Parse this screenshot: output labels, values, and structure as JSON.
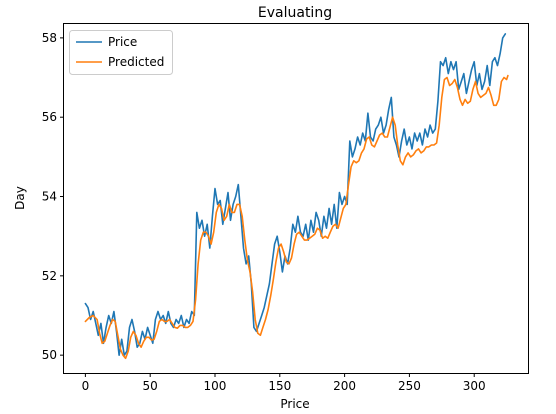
{
  "chart_data": {
    "type": "line",
    "title": "Evaluating",
    "xlabel": "Price",
    "ylabel": "Day",
    "xlim": [
      -16.5,
      341.5
    ],
    "ylim": [
      49.55,
      58.35
    ],
    "xticks": [
      0,
      50,
      100,
      150,
      200,
      250,
      300
    ],
    "yticks": [
      50,
      52,
      54,
      56,
      58
    ],
    "grid": false,
    "legend_position": "top-left",
    "colors": {
      "Price": "#1f77b4",
      "Predicted": "#ff7f0e"
    },
    "series": [
      {
        "name": "Price",
        "color": "#1f77b4",
        "points": [
          [
            0,
            51.3
          ],
          [
            2,
            51.2
          ],
          [
            4,
            50.9
          ],
          [
            6,
            51.1
          ],
          [
            8,
            50.8
          ],
          [
            10,
            50.5
          ],
          [
            12,
            50.8
          ],
          [
            14,
            50.3
          ],
          [
            16,
            50.7
          ],
          [
            18,
            51.0
          ],
          [
            20,
            50.8
          ],
          [
            22,
            51.1
          ],
          [
            24,
            50.6
          ],
          [
            26,
            50.0
          ],
          [
            28,
            50.4
          ],
          [
            30,
            50.0
          ],
          [
            32,
            50.1
          ],
          [
            34,
            50.7
          ],
          [
            36,
            50.9
          ],
          [
            38,
            50.6
          ],
          [
            40,
            50.2
          ],
          [
            42,
            50.3
          ],
          [
            44,
            50.6
          ],
          [
            46,
            50.4
          ],
          [
            48,
            50.7
          ],
          [
            50,
            50.5
          ],
          [
            52,
            50.3
          ],
          [
            54,
            50.9
          ],
          [
            56,
            51.1
          ],
          [
            58,
            50.9
          ],
          [
            60,
            51.0
          ],
          [
            62,
            50.8
          ],
          [
            64,
            51.1
          ],
          [
            66,
            50.8
          ],
          [
            68,
            50.7
          ],
          [
            70,
            50.9
          ],
          [
            72,
            50.8
          ],
          [
            74,
            51.0
          ],
          [
            76,
            50.7
          ],
          [
            78,
            50.9
          ],
          [
            80,
            50.8
          ],
          [
            82,
            51.1
          ],
          [
            84,
            51.0
          ],
          [
            86,
            53.6
          ],
          [
            88,
            53.2
          ],
          [
            90,
            53.4
          ],
          [
            92,
            53.0
          ],
          [
            94,
            53.3
          ],
          [
            96,
            52.7
          ],
          [
            98,
            53.5
          ],
          [
            100,
            54.2
          ],
          [
            102,
            53.8
          ],
          [
            104,
            53.9
          ],
          [
            106,
            53.3
          ],
          [
            108,
            53.7
          ],
          [
            110,
            54.1
          ],
          [
            112,
            53.4
          ],
          [
            114,
            53.8
          ],
          [
            116,
            54.0
          ],
          [
            118,
            54.3
          ],
          [
            120,
            53.5
          ],
          [
            122,
            52.7
          ],
          [
            124,
            52.3
          ],
          [
            126,
            52.5
          ],
          [
            128,
            51.8
          ],
          [
            130,
            50.7
          ],
          [
            132,
            50.6
          ],
          [
            134,
            50.8
          ],
          [
            136,
            51.0
          ],
          [
            138,
            51.2
          ],
          [
            140,
            51.5
          ],
          [
            142,
            51.8
          ],
          [
            144,
            52.3
          ],
          [
            146,
            52.8
          ],
          [
            148,
            53.0
          ],
          [
            150,
            52.6
          ],
          [
            152,
            52.1
          ],
          [
            154,
            52.5
          ],
          [
            156,
            52.3
          ],
          [
            158,
            52.7
          ],
          [
            160,
            53.3
          ],
          [
            162,
            53.1
          ],
          [
            164,
            53.5
          ],
          [
            166,
            53.1
          ],
          [
            168,
            53.0
          ],
          [
            170,
            53.3
          ],
          [
            172,
            52.9
          ],
          [
            174,
            53.4
          ],
          [
            176,
            53.1
          ],
          [
            178,
            53.6
          ],
          [
            180,
            53.4
          ],
          [
            182,
            53.0
          ],
          [
            184,
            53.5
          ],
          [
            186,
            53.2
          ],
          [
            188,
            53.7
          ],
          [
            190,
            53.3
          ],
          [
            192,
            53.8
          ],
          [
            194,
            53.2
          ],
          [
            196,
            54.1
          ],
          [
            198,
            53.8
          ],
          [
            200,
            54.0
          ],
          [
            202,
            53.8
          ],
          [
            204,
            55.4
          ],
          [
            206,
            55.0
          ],
          [
            208,
            55.2
          ],
          [
            210,
            55.5
          ],
          [
            212,
            55.3
          ],
          [
            214,
            55.6
          ],
          [
            216,
            55.4
          ],
          [
            218,
            56.1
          ],
          [
            220,
            55.5
          ],
          [
            222,
            55.4
          ],
          [
            224,
            55.7
          ],
          [
            226,
            55.8
          ],
          [
            228,
            56.0
          ],
          [
            230,
            55.6
          ],
          [
            232,
            55.8
          ],
          [
            234,
            56.2
          ],
          [
            236,
            56.5
          ],
          [
            238,
            55.5
          ],
          [
            240,
            55.3
          ],
          [
            242,
            55.0
          ],
          [
            244,
            55.4
          ],
          [
            246,
            55.7
          ],
          [
            248,
            55.3
          ],
          [
            250,
            55.5
          ],
          [
            252,
            55.2
          ],
          [
            254,
            55.6
          ],
          [
            256,
            55.4
          ],
          [
            258,
            55.6
          ],
          [
            260,
            55.3
          ],
          [
            262,
            55.7
          ],
          [
            264,
            55.5
          ],
          [
            266,
            55.8
          ],
          [
            268,
            55.6
          ],
          [
            270,
            55.7
          ],
          [
            272,
            56.4
          ],
          [
            274,
            57.4
          ],
          [
            276,
            57.3
          ],
          [
            278,
            57.5
          ],
          [
            280,
            57.1
          ],
          [
            282,
            57.4
          ],
          [
            284,
            57.2
          ],
          [
            286,
            57.4
          ],
          [
            288,
            56.7
          ],
          [
            290,
            56.9
          ],
          [
            292,
            57.1
          ],
          [
            294,
            56.6
          ],
          [
            296,
            56.9
          ],
          [
            298,
            57.2
          ],
          [
            300,
            57.4
          ],
          [
            302,
            56.8
          ],
          [
            304,
            57.1
          ],
          [
            306,
            56.7
          ],
          [
            308,
            56.9
          ],
          [
            310,
            57.3
          ],
          [
            312,
            56.8
          ],
          [
            314,
            57.4
          ],
          [
            316,
            57.5
          ],
          [
            318,
            57.3
          ],
          [
            320,
            57.6
          ],
          [
            322,
            58.0
          ],
          [
            324,
            58.1
          ]
        ]
      },
      {
        "name": "Predicted",
        "color": "#ff7f0e",
        "points": [
          [
            0,
            50.85
          ],
          [
            3,
            50.95
          ],
          [
            6,
            51.0
          ],
          [
            9,
            50.9
          ],
          [
            11,
            50.55
          ],
          [
            13,
            50.3
          ],
          [
            15,
            50.35
          ],
          [
            17,
            50.55
          ],
          [
            19,
            50.75
          ],
          [
            21,
            50.9
          ],
          [
            23,
            50.85
          ],
          [
            25,
            50.5
          ],
          [
            27,
            50.15
          ],
          [
            29,
            50.0
          ],
          [
            31,
            49.92
          ],
          [
            33,
            50.1
          ],
          [
            35,
            50.45
          ],
          [
            37,
            50.6
          ],
          [
            39,
            50.5
          ],
          [
            41,
            50.3
          ],
          [
            43,
            50.2
          ],
          [
            45,
            50.35
          ],
          [
            47,
            50.45
          ],
          [
            49,
            50.45
          ],
          [
            51,
            50.38
          ],
          [
            53,
            50.4
          ],
          [
            55,
            50.6
          ],
          [
            57,
            50.85
          ],
          [
            59,
            50.9
          ],
          [
            61,
            50.85
          ],
          [
            63,
            50.85
          ],
          [
            65,
            50.9
          ],
          [
            67,
            50.8
          ],
          [
            69,
            50.7
          ],
          [
            71,
            50.68
          ],
          [
            73,
            50.75
          ],
          [
            75,
            50.75
          ],
          [
            77,
            50.7
          ],
          [
            79,
            50.7
          ],
          [
            81,
            50.75
          ],
          [
            83,
            50.85
          ],
          [
            85,
            51.4
          ],
          [
            87,
            52.3
          ],
          [
            89,
            52.9
          ],
          [
            91,
            53.1
          ],
          [
            93,
            53.1
          ],
          [
            95,
            53.0
          ],
          [
            97,
            52.8
          ],
          [
            99,
            53.1
          ],
          [
            101,
            53.6
          ],
          [
            103,
            53.8
          ],
          [
            105,
            53.7
          ],
          [
            107,
            53.4
          ],
          [
            109,
            53.5
          ],
          [
            111,
            53.8
          ],
          [
            113,
            53.6
          ],
          [
            115,
            53.6
          ],
          [
            117,
            53.8
          ],
          [
            119,
            53.8
          ],
          [
            121,
            53.5
          ],
          [
            123,
            52.9
          ],
          [
            125,
            52.4
          ],
          [
            127,
            52.1
          ],
          [
            129,
            51.6
          ],
          [
            131,
            50.9
          ],
          [
            133,
            50.55
          ],
          [
            135,
            50.5
          ],
          [
            137,
            50.7
          ],
          [
            139,
            50.9
          ],
          [
            141,
            51.15
          ],
          [
            143,
            51.5
          ],
          [
            145,
            51.9
          ],
          [
            147,
            52.35
          ],
          [
            149,
            52.7
          ],
          [
            151,
            52.8
          ],
          [
            153,
            52.6
          ],
          [
            155,
            52.35
          ],
          [
            157,
            52.3
          ],
          [
            159,
            52.45
          ],
          [
            161,
            52.8
          ],
          [
            163,
            53.05
          ],
          [
            165,
            53.1
          ],
          [
            167,
            53.0
          ],
          [
            169,
            52.9
          ],
          [
            171,
            52.9
          ],
          [
            173,
            52.95
          ],
          [
            175,
            53.0
          ],
          [
            177,
            53.05
          ],
          [
            179,
            53.2
          ],
          [
            181,
            53.15
          ],
          [
            183,
            52.95
          ],
          [
            185,
            53.0
          ],
          [
            187,
            52.95
          ],
          [
            189,
            53.1
          ],
          [
            191,
            53.25
          ],
          [
            193,
            53.3
          ],
          [
            195,
            53.2
          ],
          [
            197,
            53.45
          ],
          [
            199,
            53.7
          ],
          [
            201,
            53.8
          ],
          [
            203,
            54.3
          ],
          [
            205,
            54.75
          ],
          [
            207,
            54.9
          ],
          [
            209,
            54.85
          ],
          [
            211,
            54.9
          ],
          [
            213,
            55.1
          ],
          [
            215,
            55.2
          ],
          [
            217,
            55.45
          ],
          [
            219,
            55.5
          ],
          [
            221,
            55.3
          ],
          [
            223,
            55.25
          ],
          [
            225,
            55.4
          ],
          [
            227,
            55.55
          ],
          [
            229,
            55.6
          ],
          [
            231,
            55.5
          ],
          [
            233,
            55.5
          ],
          [
            235,
            55.75
          ],
          [
            237,
            56.0
          ],
          [
            239,
            55.8
          ],
          [
            241,
            55.3
          ],
          [
            243,
            54.9
          ],
          [
            245,
            54.8
          ],
          [
            247,
            55.0
          ],
          [
            249,
            55.1
          ],
          [
            251,
            55.0
          ],
          [
            253,
            55.05
          ],
          [
            255,
            55.15
          ],
          [
            257,
            55.2
          ],
          [
            259,
            55.1
          ],
          [
            261,
            55.15
          ],
          [
            263,
            55.25
          ],
          [
            265,
            55.25
          ],
          [
            267,
            55.3
          ],
          [
            269,
            55.3
          ],
          [
            271,
            55.35
          ],
          [
            273,
            55.8
          ],
          [
            275,
            56.5
          ],
          [
            277,
            56.95
          ],
          [
            279,
            57.0
          ],
          [
            281,
            56.8
          ],
          [
            283,
            56.85
          ],
          [
            285,
            56.95
          ],
          [
            287,
            56.75
          ],
          [
            289,
            56.45
          ],
          [
            291,
            56.3
          ],
          [
            293,
            56.45
          ],
          [
            295,
            56.35
          ],
          [
            297,
            56.4
          ],
          [
            299,
            56.7
          ],
          [
            301,
            56.9
          ],
          [
            303,
            56.6
          ],
          [
            305,
            56.5
          ],
          [
            307,
            56.55
          ],
          [
            309,
            56.6
          ],
          [
            311,
            56.75
          ],
          [
            313,
            56.55
          ],
          [
            315,
            56.3
          ],
          [
            317,
            56.3
          ],
          [
            319,
            56.45
          ],
          [
            321,
            56.9
          ],
          [
            323,
            57.0
          ],
          [
            325,
            56.95
          ],
          [
            326,
            57.05
          ]
        ]
      }
    ]
  }
}
